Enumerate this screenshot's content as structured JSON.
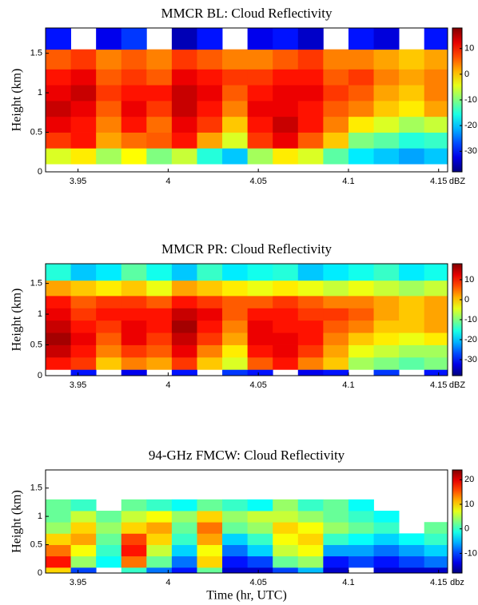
{
  "chart_data": [
    {
      "type": "heatmap",
      "title": "MMCR BL: Cloud Reflectivity",
      "ylabel": "Height (km)",
      "colormap": "jet",
      "xlim": [
        3.932,
        4.155
      ],
      "ylim": [
        0,
        1.82
      ],
      "xticks": [
        3.95,
        4,
        4.05,
        4.1,
        4.15
      ],
      "yticks": [
        0,
        0.5,
        1,
        1.5
      ],
      "clim": [
        -38,
        18
      ],
      "cticks": [
        10,
        0,
        -10,
        -20,
        -30
      ],
      "colorbar_label": "dBZ",
      "x_edges": [
        3.932,
        3.946,
        3.96,
        3.974,
        3.988,
        4.002,
        4.016,
        4.03,
        4.044,
        4.058,
        4.072,
        4.086,
        4.1,
        4.114,
        4.128,
        4.142,
        4.155
      ],
      "y_edges": [
        0,
        0.1,
        0.3,
        0.5,
        0.7,
        0.9,
        1.1,
        1.3,
        1.55,
        1.82
      ],
      "z": [
        [
          null,
          null,
          null,
          null,
          null,
          null,
          null,
          null,
          null,
          null,
          null,
          null,
          null,
          null,
          null,
          null
        ],
        [
          -5,
          -2,
          -8,
          -3,
          -10,
          -6,
          -15,
          -20,
          -8,
          -2,
          -5,
          -12,
          -18,
          -20,
          -22,
          -20
        ],
        [
          8,
          10,
          2,
          5,
          6,
          10,
          2,
          -5,
          8,
          12,
          6,
          0,
          -10,
          -12,
          -15,
          -14
        ],
        [
          12,
          10,
          4,
          10,
          5,
          12,
          8,
          0,
          10,
          14,
          10,
          4,
          -2,
          -5,
          -8,
          -6
        ],
        [
          14,
          12,
          6,
          12,
          8,
          14,
          10,
          4,
          12,
          12,
          10,
          6,
          4,
          0,
          -2,
          2
        ],
        [
          12,
          14,
          8,
          10,
          10,
          14,
          12,
          6,
          10,
          12,
          12,
          8,
          6,
          2,
          0,
          4
        ],
        [
          10,
          12,
          6,
          8,
          6,
          12,
          10,
          8,
          8,
          10,
          10,
          6,
          8,
          4,
          2,
          4
        ],
        [
          6,
          8,
          4,
          6,
          4,
          8,
          6,
          4,
          4,
          6,
          8,
          4,
          4,
          2,
          0,
          2
        ],
        [
          -30,
          null,
          -32,
          -28,
          null,
          -35,
          -30,
          null,
          -32,
          -30,
          -34,
          null,
          -30,
          -33,
          null,
          -30
        ]
      ]
    },
    {
      "type": "heatmap",
      "title": "MMCR PR: Cloud Reflectivity",
      "ylabel": "Height (km)",
      "colormap": "jet",
      "xlim": [
        3.932,
        4.155
      ],
      "ylim": [
        0,
        1.82
      ],
      "xticks": [
        3.95,
        4,
        4.05,
        4.1,
        4.15
      ],
      "yticks": [
        0,
        0.5,
        1,
        1.5
      ],
      "clim": [
        -38,
        18
      ],
      "cticks": [
        10,
        0,
        -10,
        -20,
        -30
      ],
      "colorbar_label": "dBZ",
      "x_edges": [
        3.932,
        3.946,
        3.96,
        3.974,
        3.988,
        4.002,
        4.016,
        4.03,
        4.044,
        4.058,
        4.072,
        4.086,
        4.1,
        4.114,
        4.128,
        4.142,
        4.155
      ],
      "y_edges": [
        0,
        0.1,
        0.3,
        0.5,
        0.7,
        0.9,
        1.1,
        1.3,
        1.55,
        1.82
      ],
      "z": [
        [
          null,
          -30,
          null,
          -32,
          null,
          -30,
          null,
          -28,
          -30,
          null,
          -32,
          -30,
          null,
          -28,
          null,
          -30
        ],
        [
          10,
          8,
          0,
          4,
          2,
          8,
          0,
          -5,
          6,
          10,
          4,
          0,
          -8,
          -10,
          -12,
          -10
        ],
        [
          14,
          10,
          4,
          8,
          6,
          12,
          4,
          -2,
          10,
          12,
          8,
          2,
          -4,
          -6,
          -8,
          -8
        ],
        [
          16,
          12,
          6,
          12,
          8,
          14,
          8,
          2,
          12,
          12,
          10,
          4,
          0,
          -2,
          -4,
          -2
        ],
        [
          14,
          10,
          8,
          12,
          10,
          16,
          10,
          4,
          12,
          10,
          10,
          6,
          4,
          0,
          0,
          2
        ],
        [
          12,
          8,
          10,
          10,
          10,
          14,
          12,
          6,
          10,
          10,
          8,
          8,
          6,
          2,
          0,
          2
        ],
        [
          10,
          6,
          8,
          8,
          6,
          10,
          8,
          6,
          6,
          8,
          6,
          4,
          4,
          2,
          0,
          2
        ],
        [
          2,
          0,
          -2,
          0,
          -4,
          2,
          0,
          -2,
          -4,
          -2,
          -4,
          -6,
          -4,
          -6,
          -8,
          -6
        ],
        [
          -15,
          -20,
          -18,
          -12,
          -16,
          -20,
          -14,
          -18,
          -16,
          -15,
          -20,
          -18,
          -16,
          -14,
          -18,
          -16
        ]
      ]
    },
    {
      "type": "heatmap",
      "title": "94-GHz FMCW: Cloud Reflectivity",
      "ylabel": "Height (km)",
      "xlabel": "Time (hr, UTC)",
      "colormap": "jet",
      "xlim": [
        3.932,
        4.155
      ],
      "ylim": [
        0,
        1.82
      ],
      "xticks": [
        3.95,
        4,
        4.05,
        4.1,
        4.15
      ],
      "yticks": [
        0,
        0.5,
        1,
        1.5
      ],
      "clim": [
        -18,
        24
      ],
      "cticks": [
        20,
        10,
        0,
        -10
      ],
      "colorbar_label": "dbz",
      "x_edges": [
        3.932,
        3.946,
        3.96,
        3.974,
        3.988,
        4.002,
        4.016,
        4.03,
        4.044,
        4.058,
        4.072,
        4.086,
        4.1,
        4.114,
        4.128,
        4.142,
        4.155
      ],
      "y_edges": [
        0,
        0.1,
        0.3,
        0.5,
        0.7,
        0.9,
        1.1,
        1.3,
        1.55,
        1.82
      ],
      "z": [
        [
          10,
          -10,
          null,
          0,
          -8,
          -12,
          2,
          -15,
          -15,
          -10,
          -5,
          -15,
          null,
          -15,
          -15,
          -15
        ],
        [
          18,
          4,
          -2,
          14,
          2,
          -8,
          10,
          -12,
          -10,
          2,
          4,
          -12,
          -10,
          -12,
          -10,
          -8
        ],
        [
          14,
          8,
          0,
          18,
          6,
          -4,
          8,
          -8,
          -4,
          6,
          8,
          -6,
          -6,
          -8,
          -6,
          -4
        ],
        [
          10,
          12,
          2,
          16,
          10,
          0,
          12,
          -4,
          0,
          8,
          10,
          0,
          -2,
          -4,
          -2,
          0
        ],
        [
          4,
          10,
          4,
          10,
          12,
          2,
          14,
          2,
          4,
          10,
          8,
          4,
          2,
          0,
          null,
          2
        ],
        [
          2,
          6,
          2,
          6,
          8,
          4,
          10,
          4,
          6,
          6,
          4,
          2,
          0,
          -2,
          null,
          null
        ],
        [
          2,
          0,
          null,
          2,
          0,
          -2,
          2,
          0,
          -2,
          4,
          0,
          2,
          -2,
          null,
          null,
          null
        ],
        [
          null,
          null,
          null,
          null,
          null,
          null,
          null,
          null,
          null,
          null,
          null,
          null,
          null,
          null,
          null,
          null
        ],
        [
          null,
          null,
          null,
          null,
          null,
          null,
          null,
          null,
          null,
          null,
          null,
          null,
          null,
          null,
          null,
          null
        ]
      ]
    }
  ]
}
